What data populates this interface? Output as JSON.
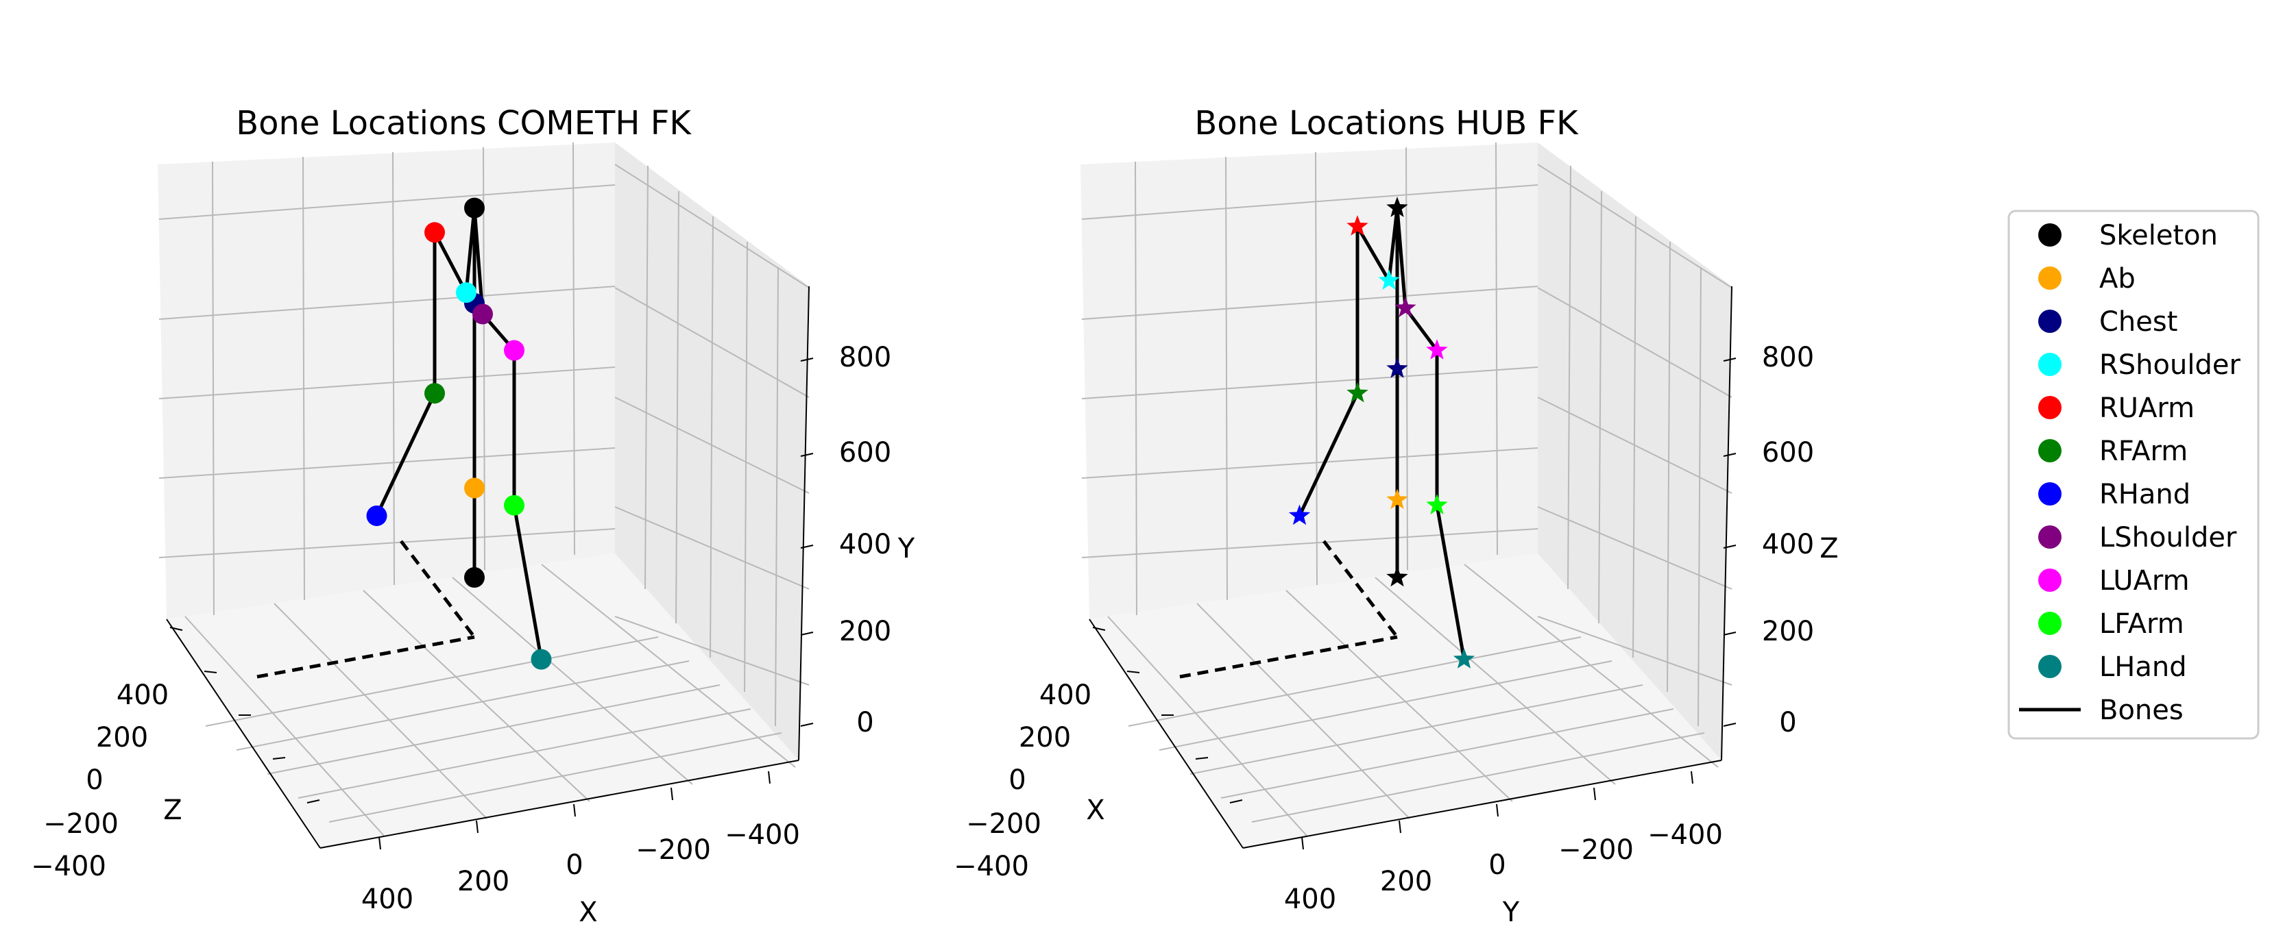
{
  "chart_data": [
    {
      "type": "scatter",
      "title": "Bone Locations COMETH FK",
      "marker": "circle",
      "axis_labels": {
        "x": "X",
        "y": "Y",
        "z": "Z"
      },
      "x_ticks": [
        "400",
        "200",
        "0",
        "−200",
        "−400"
      ],
      "z_ticks": [
        "400",
        "200",
        "0",
        "−200",
        "−400"
      ],
      "vertical_ticks": [
        "0",
        "200",
        "400",
        "600",
        "800"
      ],
      "points": [
        {
          "name": "Skeleton",
          "x": 0,
          "y": 100,
          "z": 0
        },
        {
          "name": "Ab",
          "x": 0,
          "y": 250,
          "z": 0
        },
        {
          "name": "Chest",
          "x": 0,
          "y": 560,
          "z": 0
        },
        {
          "name": "RShoulder",
          "x": 10,
          "y": 570,
          "z": -20
        },
        {
          "name": "RUArm",
          "x": 60,
          "y": 650,
          "z": -80
        },
        {
          "name": "RFArm",
          "x": 60,
          "y": 380,
          "z": -80
        },
        {
          "name": "RHand",
          "x": 180,
          "y": 160,
          "z": -150
        },
        {
          "name": "LShoulder",
          "x": -10,
          "y": 550,
          "z": 20
        },
        {
          "name": "LUArm",
          "x": -60,
          "y": 510,
          "z": 80
        },
        {
          "name": "LFArm",
          "x": -60,
          "y": 250,
          "z": 80
        },
        {
          "name": "LHand",
          "x": -20,
          "y": 80,
          "z": 250
        },
        {
          "name": "Skeleton",
          "x": 0,
          "y": 720,
          "z": 0
        }
      ]
    },
    {
      "type": "scatter",
      "title": "Bone Locations HUB FK",
      "marker": "star",
      "axis_labels": {
        "x": "Y",
        "y": "Z",
        "z": "X"
      },
      "x_ticks": [
        "400",
        "200",
        "0",
        "−200",
        "−400"
      ],
      "z_ticks": [
        "400",
        "200",
        "0",
        "−200",
        "−400"
      ],
      "vertical_ticks": [
        "0",
        "200",
        "400",
        "600",
        "800"
      ],
      "points": [
        {
          "name": "Skeleton",
          "x": 0,
          "y": 100,
          "z": 0
        },
        {
          "name": "Ab",
          "x": 0,
          "y": 230,
          "z": 0
        },
        {
          "name": "Chest",
          "x": 0,
          "y": 450,
          "z": 0
        },
        {
          "name": "RShoulder",
          "x": 10,
          "y": 590,
          "z": -20
        },
        {
          "name": "RUArm",
          "x": 60,
          "y": 660,
          "z": -80
        },
        {
          "name": "RFArm",
          "x": 60,
          "y": 380,
          "z": -80
        },
        {
          "name": "RHand",
          "x": 180,
          "y": 160,
          "z": -150
        },
        {
          "name": "LShoulder",
          "x": -10,
          "y": 560,
          "z": 20
        },
        {
          "name": "LUArm",
          "x": -60,
          "y": 510,
          "z": 80
        },
        {
          "name": "LFArm",
          "x": -60,
          "y": 250,
          "z": 80
        },
        {
          "name": "LHand",
          "x": -20,
          "y": 80,
          "z": 250
        },
        {
          "name": "Skeleton",
          "x": 0,
          "y": 720,
          "z": 0
        }
      ]
    }
  ],
  "legend": {
    "placement": "right",
    "entries": [
      {
        "label": "Skeleton",
        "color": "#000000",
        "kind": "marker"
      },
      {
        "label": "Ab",
        "color": "#ffa500",
        "kind": "marker"
      },
      {
        "label": "Chest",
        "color": "#000080",
        "kind": "marker"
      },
      {
        "label": "RShoulder",
        "color": "#00ffff",
        "kind": "marker"
      },
      {
        "label": "RUArm",
        "color": "#ff0000",
        "kind": "marker"
      },
      {
        "label": "RFArm",
        "color": "#008000",
        "kind": "marker"
      },
      {
        "label": "RHand",
        "color": "#0000ff",
        "kind": "marker"
      },
      {
        "label": "LShoulder",
        "color": "#800080",
        "kind": "marker"
      },
      {
        "label": "LUArm",
        "color": "#ff00ff",
        "kind": "marker"
      },
      {
        "label": "LFArm",
        "color": "#00ff00",
        "kind": "marker"
      },
      {
        "label": "LHand",
        "color": "#008080",
        "kind": "marker"
      },
      {
        "label": "Bones",
        "color": "#000000",
        "kind": "line"
      }
    ]
  }
}
